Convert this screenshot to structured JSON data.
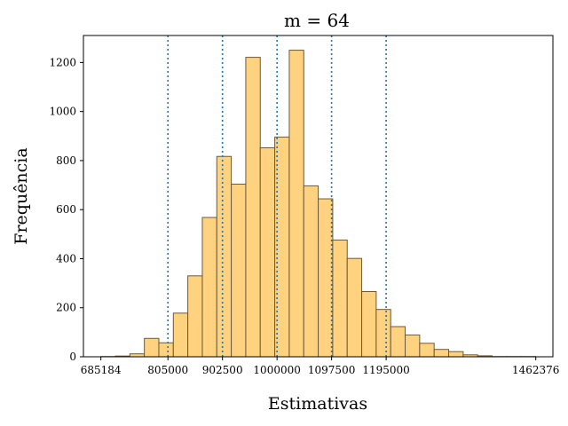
{
  "chart_data": {
    "type": "bar",
    "title": "m = 64",
    "xlabel": "Estimativas",
    "ylabel": "Frequência",
    "xlim": [
      654000,
      1493000
    ],
    "ylim": [
      0,
      1310
    ],
    "grid": false,
    "bar_fill": "#ffd27f",
    "bar_edge": "#6b5a3a",
    "vline_color": "#1f77b4",
    "xticks": [
      {
        "value": 685184,
        "label": "685184"
      },
      {
        "value": 805000,
        "label": "805000"
      },
      {
        "value": 902500,
        "label": "902500"
      },
      {
        "value": 1000000,
        "label": "1000000"
      },
      {
        "value": 1097500,
        "label": "1097500"
      },
      {
        "value": 1195000,
        "label": "1195000"
      },
      {
        "value": 1462376,
        "label": "1462376"
      }
    ],
    "yticks": [
      0,
      200,
      400,
      600,
      800,
      1000,
      1200
    ],
    "vlines": [
      805000,
      902500,
      1000000,
      1097500,
      1195000
    ],
    "bins": {
      "edges": [
        685184,
        711080,
        736976,
        762872,
        788768,
        814664,
        840560,
        866456,
        892352,
        918248,
        944144,
        970040,
        995936,
        1021832,
        1047728,
        1073624,
        1099520,
        1125416,
        1151312,
        1177208,
        1203104,
        1229000,
        1254896,
        1280792,
        1306688,
        1332584,
        1358480,
        1384376,
        1410272,
        1436168,
        1462064
      ],
      "counts": [
        1,
        3,
        12,
        75,
        57,
        178,
        330,
        568,
        817,
        704,
        1221,
        852,
        896,
        1250,
        697,
        644,
        476,
        401,
        266,
        193,
        123,
        89,
        55,
        30,
        21,
        8,
        4,
        1,
        1,
        1
      ]
    }
  }
}
